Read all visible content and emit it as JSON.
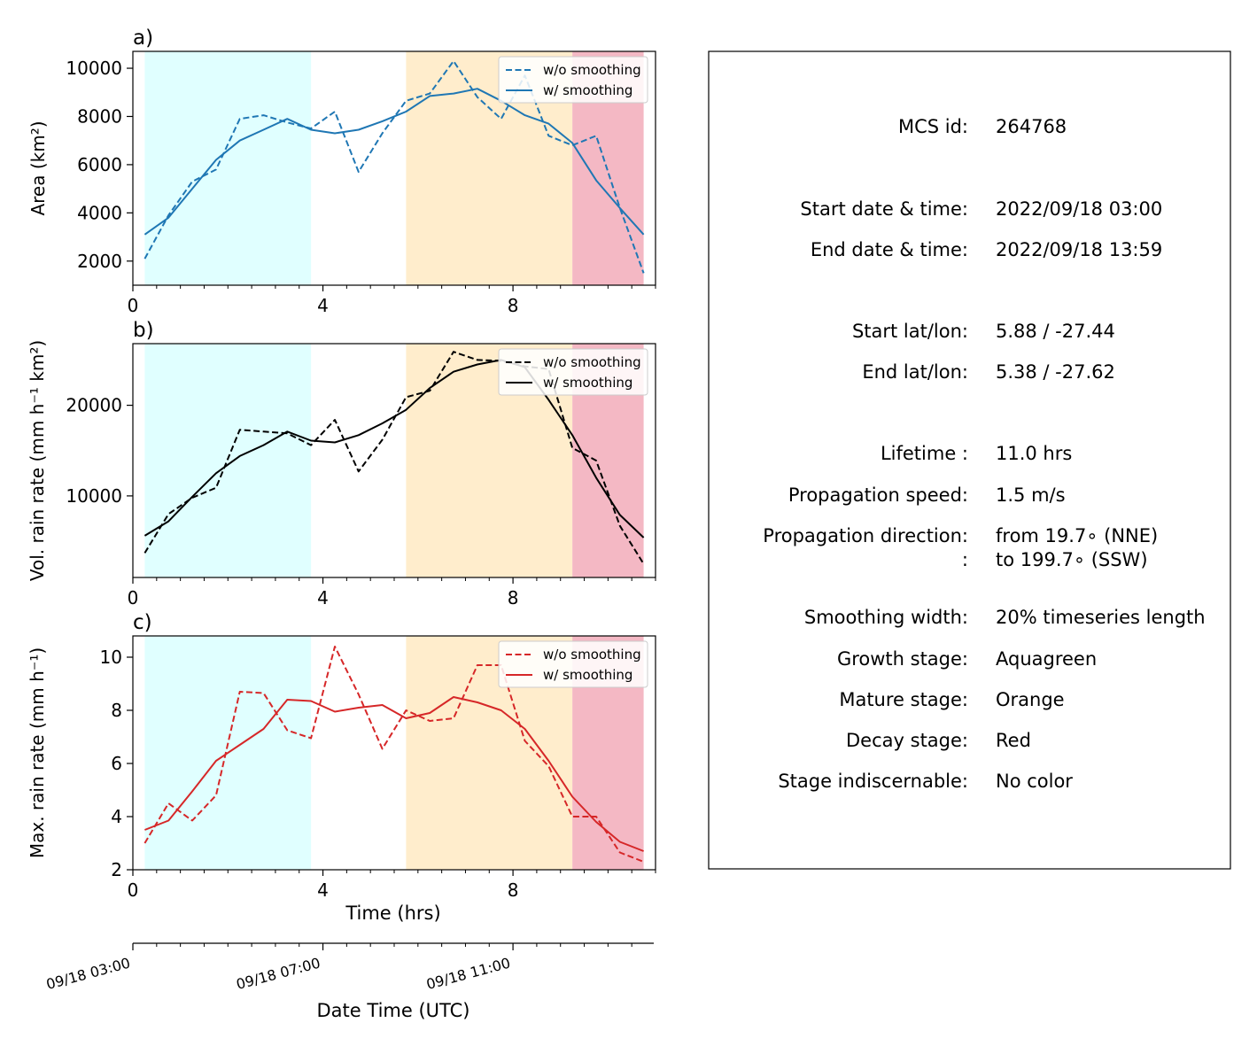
{
  "time_axis_label": "Time (hrs)",
  "datetime_axis": {
    "label": "Date Time (UTC)",
    "ticks": [
      "09/18 03:00",
      "09/18 07:00",
      "09/18 11:00"
    ]
  },
  "stage_colors": {
    "growth": "#e0ffff",
    "mature": "#ffedcc",
    "decay": "#f4b8c4"
  },
  "chart_data": [
    {
      "type": "line",
      "panel_label": "a)",
      "ylabel": "Area  (km²)",
      "xlabel": "",
      "color": "#1f77b4",
      "xlim": [
        0,
        11
      ],
      "ylim": [
        1000,
        10700
      ],
      "xticks": [
        0,
        4,
        8
      ],
      "yticks": [
        2000,
        4000,
        6000,
        8000,
        10000
      ],
      "legend": "top-right",
      "stages": [
        {
          "stage": "growth",
          "x0": 0.25,
          "x1": 3.75
        },
        {
          "stage": "mature",
          "x0": 5.75,
          "x1": 9.25
        },
        {
          "stage": "decay",
          "x0": 9.25,
          "x1": 10.75
        }
      ],
      "x": [
        0.25,
        0.75,
        1.25,
        1.75,
        2.25,
        2.75,
        3.25,
        3.75,
        4.25,
        4.75,
        5.25,
        5.75,
        6.25,
        6.75,
        7.25,
        7.75,
        8.25,
        8.75,
        9.25,
        9.75,
        10.25,
        10.75
      ],
      "series": [
        {
          "name": "w/o smoothing",
          "style": "dashed",
          "values": [
            2100,
            3900,
            5300,
            5800,
            7900,
            8050,
            7750,
            7500,
            8200,
            5700,
            7300,
            8650,
            8950,
            10300,
            8800,
            7900,
            9700,
            7200,
            6800,
            7200,
            4200,
            1500
          ]
        },
        {
          "name": "w/ smoothing",
          "style": "solid",
          "values": [
            3100,
            3800,
            5000,
            6200,
            7000,
            7450,
            7900,
            7450,
            7300,
            7450,
            7800,
            8200,
            8850,
            8950,
            9150,
            8650,
            8050,
            7700,
            6900,
            5350,
            4200,
            3100
          ]
        }
      ]
    },
    {
      "type": "line",
      "panel_label": "b)",
      "ylabel": "Vol. rain rate (mm h⁻¹ km²)",
      "xlabel": "",
      "color": "#000000",
      "xlim": [
        0,
        11
      ],
      "ylim": [
        1000,
        26800
      ],
      "xticks": [
        0,
        4,
        8
      ],
      "yticks": [
        10000,
        20000
      ],
      "legend": "top-right",
      "stages": [
        {
          "stage": "growth",
          "x0": 0.25,
          "x1": 3.75
        },
        {
          "stage": "mature",
          "x0": 5.75,
          "x1": 9.25
        },
        {
          "stage": "decay",
          "x0": 9.25,
          "x1": 10.75
        }
      ],
      "x": [
        0.25,
        0.75,
        1.25,
        1.75,
        2.25,
        2.75,
        3.25,
        3.75,
        4.25,
        4.75,
        5.25,
        5.75,
        6.25,
        6.75,
        7.25,
        7.75,
        8.25,
        8.75,
        9.25,
        9.75,
        10.25,
        10.75
      ],
      "series": [
        {
          "name": "w/o smoothing",
          "style": "dashed",
          "values": [
            3700,
            8000,
            9800,
            10900,
            17300,
            17100,
            16900,
            15600,
            18400,
            12700,
            16200,
            20900,
            21600,
            25900,
            25000,
            24900,
            24300,
            24000,
            15300,
            13900,
            6700,
            2500
          ]
        },
        {
          "name": "w/ smoothing",
          "style": "solid",
          "values": [
            5600,
            7200,
            9900,
            12500,
            14400,
            15600,
            17100,
            16100,
            15900,
            16700,
            18000,
            19500,
            21900,
            23700,
            24500,
            25000,
            24200,
            20600,
            16700,
            12000,
            7900,
            5400
          ]
        }
      ]
    },
    {
      "type": "line",
      "panel_label": "c)",
      "ylabel": "Max. rain rate  (mm h⁻¹)",
      "xlabel": "Time (hrs)",
      "color": "#d62728",
      "xlim": [
        0,
        11
      ],
      "ylim": [
        2,
        10.8
      ],
      "xticks": [
        0,
        4,
        8
      ],
      "yticks": [
        2,
        4,
        6,
        8,
        10
      ],
      "legend": "top-right",
      "stages": [
        {
          "stage": "growth",
          "x0": 0.25,
          "x1": 3.75
        },
        {
          "stage": "mature",
          "x0": 5.75,
          "x1": 9.25
        },
        {
          "stage": "decay",
          "x0": 9.25,
          "x1": 10.75
        }
      ],
      "x": [
        0.25,
        0.75,
        1.25,
        1.75,
        2.25,
        2.75,
        3.25,
        3.75,
        4.25,
        4.75,
        5.25,
        5.75,
        6.25,
        6.75,
        7.25,
        7.75,
        8.25,
        8.75,
        9.25,
        9.75,
        10.25,
        10.75
      ],
      "series": [
        {
          "name": "w/o smoothing",
          "style": "dashed",
          "values": [
            3.0,
            4.5,
            3.85,
            4.8,
            8.7,
            8.65,
            7.25,
            6.95,
            10.4,
            8.6,
            6.55,
            8.0,
            7.6,
            7.7,
            9.7,
            9.7,
            6.85,
            5.9,
            4.0,
            4.0,
            2.65,
            2.3
          ]
        },
        {
          "name": "w/ smoothing",
          "style": "solid",
          "values": [
            3.5,
            3.85,
            4.95,
            6.1,
            6.7,
            7.3,
            8.4,
            8.35,
            7.95,
            8.1,
            8.2,
            7.7,
            7.9,
            8.5,
            8.3,
            8.0,
            7.3,
            6.1,
            4.75,
            3.8,
            3.05,
            2.7
          ]
        }
      ]
    }
  ],
  "info_panel": {
    "rows": [
      {
        "label": "MCS id:",
        "value": "264768"
      },
      {
        "label": "Start date & time:",
        "value": "2022/09/18 03:00"
      },
      {
        "label": "End date & time:",
        "value": "2022/09/18 13:59"
      },
      {
        "label": "Start lat/lon:",
        "value": "5.88 / -27.44"
      },
      {
        "label": "End lat/lon:",
        "value": "5.38 / -27.62"
      },
      {
        "label": "Lifetime :",
        "value": "11.0 hrs"
      },
      {
        "label": "Propagation speed:",
        "value": "1.5 m/s"
      },
      {
        "label": "Propagation direction:",
        "value": "from  19.7∘ (NNE)"
      },
      {
        "label": ":",
        "value": "to   199.7∘ (SSW)"
      },
      {
        "label": "Smoothing width:",
        "value": "20% timeseries length"
      },
      {
        "label": "Growth stage:",
        "value": "Aquagreen"
      },
      {
        "label": "Mature stage:",
        "value": "Orange"
      },
      {
        "label": "Decay stage:",
        "value": "Red"
      },
      {
        "label": "Stage indiscernable:",
        "value": "No color"
      }
    ]
  }
}
